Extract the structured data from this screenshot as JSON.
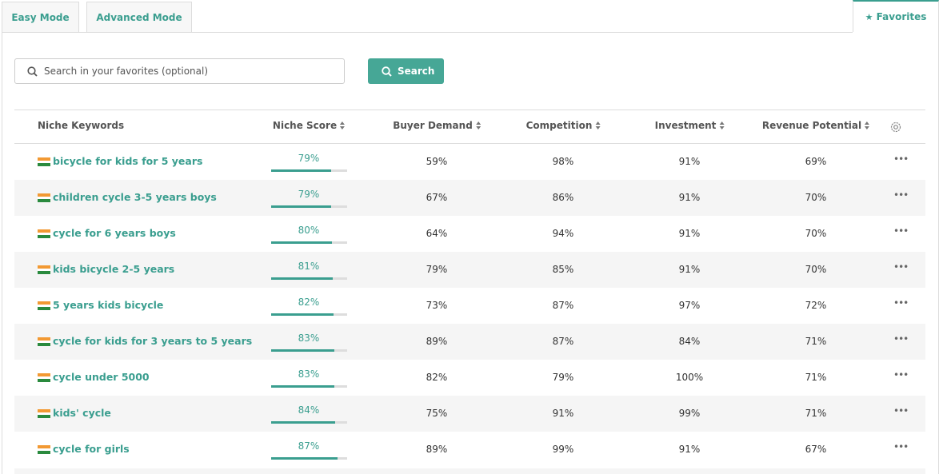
{
  "tabs": [
    "Easy Mode",
    "Advanced Mode",
    "Favorites"
  ],
  "search": {
    "placeholder": "Search in your favorites (optional)",
    "button": "Search"
  },
  "table": {
    "columns": [
      "Niche Keywords",
      "Niche Score",
      "Buyer Demand",
      "Competition",
      "Investment",
      "Revenue Potential"
    ],
    "rows": [
      {
        "keyword": "bicycle for kids for 5 years",
        "niche_score": {
          "value": 79,
          "label": "79%"
        },
        "buyer_demand": "59%",
        "competition": "98%",
        "investment": "91%",
        "revenue_potential": "69%"
      },
      {
        "keyword": "children cycle 3-5 years boys",
        "niche_score": {
          "value": 79,
          "label": "79%"
        },
        "buyer_demand": "67%",
        "competition": "86%",
        "investment": "91%",
        "revenue_potential": "70%"
      },
      {
        "keyword": "cycle for 6 years boys",
        "niche_score": {
          "value": 80,
          "label": "80%"
        },
        "buyer_demand": "64%",
        "competition": "94%",
        "investment": "91%",
        "revenue_potential": "70%"
      },
      {
        "keyword": "kids bicycle 2-5 years",
        "niche_score": {
          "value": 81,
          "label": "81%"
        },
        "buyer_demand": "79%",
        "competition": "85%",
        "investment": "91%",
        "revenue_potential": "70%"
      },
      {
        "keyword": "5 years kids bicycle",
        "niche_score": {
          "value": 82,
          "label": "82%"
        },
        "buyer_demand": "73%",
        "competition": "87%",
        "investment": "97%",
        "revenue_potential": "72%"
      },
      {
        "keyword": "cycle for kids for 3 years to 5 years",
        "niche_score": {
          "value": 83,
          "label": "83%"
        },
        "buyer_demand": "89%",
        "competition": "87%",
        "investment": "84%",
        "revenue_potential": "71%"
      },
      {
        "keyword": "cycle under 5000",
        "niche_score": {
          "value": 83,
          "label": "83%"
        },
        "buyer_demand": "82%",
        "competition": "79%",
        "investment": "100%",
        "revenue_potential": "71%"
      },
      {
        "keyword": "kids' cycle",
        "niche_score": {
          "value": 84,
          "label": "84%"
        },
        "buyer_demand": "75%",
        "competition": "91%",
        "investment": "99%",
        "revenue_potential": "71%"
      },
      {
        "keyword": "cycle for girls",
        "niche_score": {
          "value": 87,
          "label": "87%"
        },
        "buyer_demand": "89%",
        "competition": "99%",
        "investment": "91%",
        "revenue_potential": "67%"
      }
    ]
  }
}
